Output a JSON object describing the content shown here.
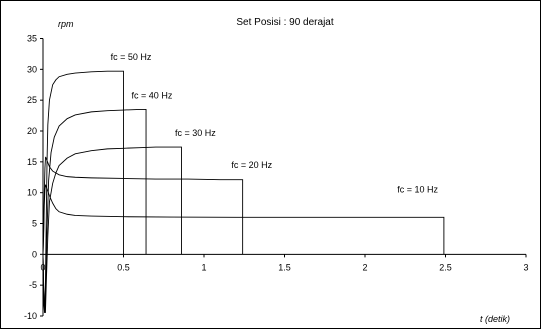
{
  "chart_data": {
    "type": "line",
    "title": "Set Posisi : 90 derajat",
    "xlabel": "t (detik)",
    "ylabel": "rpm",
    "xlim": [
      0,
      3
    ],
    "ylim": [
      -10,
      35
    ],
    "xticks": [
      0,
      0.5,
      1,
      1.5,
      2,
      2.5,
      3
    ],
    "xtick_labels": [
      "0",
      "0.5",
      "1",
      "1.5",
      "2",
      "2.5",
      "3"
    ],
    "yticks": [
      -10,
      -5,
      0,
      5,
      10,
      15,
      20,
      25,
      30,
      35
    ],
    "ytick_labels": [
      "-10",
      "-5",
      "0",
      "5",
      "10",
      "15",
      "20",
      "25",
      "30",
      "35"
    ],
    "grid": false,
    "legend": "none",
    "series": [
      {
        "label": "fc = 50 Hz",
        "label_at": [
          0.42,
          31.5
        ],
        "points": [
          [
            0,
            0
          ],
          [
            0.005,
            -8
          ],
          [
            0.01,
            -9.5
          ],
          [
            0.015,
            -5
          ],
          [
            0.02,
            5
          ],
          [
            0.025,
            15
          ],
          [
            0.03,
            21
          ],
          [
            0.04,
            25
          ],
          [
            0.06,
            27.5
          ],
          [
            0.08,
            28.3
          ],
          [
            0.1,
            28.8
          ],
          [
            0.15,
            29.2
          ],
          [
            0.2,
            29.4
          ],
          [
            0.3,
            29.6
          ],
          [
            0.4,
            29.7
          ],
          [
            0.5,
            29.7
          ],
          [
            0.5,
            0
          ]
        ]
      },
      {
        "label": "fc = 40 Hz",
        "label_at": [
          0.55,
          25.3
        ],
        "points": [
          [
            0,
            0
          ],
          [
            0.005,
            -7
          ],
          [
            0.012,
            -9.5
          ],
          [
            0.018,
            -4
          ],
          [
            0.025,
            4
          ],
          [
            0.035,
            12
          ],
          [
            0.05,
            16.5
          ],
          [
            0.07,
            19
          ],
          [
            0.1,
            20.8
          ],
          [
            0.15,
            22
          ],
          [
            0.2,
            22.6
          ],
          [
            0.3,
            23.1
          ],
          [
            0.4,
            23.3
          ],
          [
            0.5,
            23.4
          ],
          [
            0.6,
            23.5
          ],
          [
            0.64,
            23.5
          ],
          [
            0.64,
            0
          ]
        ]
      },
      {
        "label": "fc = 30 Hz",
        "label_at": [
          0.82,
          19.2
        ],
        "points": [
          [
            0,
            0
          ],
          [
            0.005,
            -6
          ],
          [
            0.015,
            -9.5
          ],
          [
            0.02,
            -5
          ],
          [
            0.03,
            3
          ],
          [
            0.04,
            8.5
          ],
          [
            0.06,
            11.5
          ],
          [
            0.08,
            13.2
          ],
          [
            0.1,
            14.4
          ],
          [
            0.15,
            15.6
          ],
          [
            0.2,
            16.3
          ],
          [
            0.3,
            16.8
          ],
          [
            0.4,
            17.1
          ],
          [
            0.5,
            17.2
          ],
          [
            0.6,
            17.3
          ],
          [
            0.7,
            17.4
          ],
          [
            0.8,
            17.4
          ],
          [
            0.86,
            17.4
          ],
          [
            0.86,
            0
          ]
        ]
      },
      {
        "label": "fc = 20 Hz",
        "label_at": [
          1.17,
          14.0
        ],
        "points": [
          [
            0,
            0
          ],
          [
            0.004,
            4
          ],
          [
            0.008,
            10
          ],
          [
            0.012,
            14
          ],
          [
            0.016,
            15.8
          ],
          [
            0.025,
            15.2
          ],
          [
            0.04,
            14.2
          ],
          [
            0.06,
            13.5
          ],
          [
            0.1,
            12.9
          ],
          [
            0.15,
            12.6
          ],
          [
            0.2,
            12.5
          ],
          [
            0.3,
            12.4
          ],
          [
            0.5,
            12.3
          ],
          [
            0.7,
            12.2
          ],
          [
            0.9,
            12.2
          ],
          [
            1.1,
            12.1
          ],
          [
            1.24,
            12.1
          ],
          [
            1.24,
            0
          ]
        ]
      },
      {
        "label": "fc = 10 Hz",
        "label_at": [
          2.2,
          10.0
        ],
        "points": [
          [
            0,
            0
          ],
          [
            0.004,
            3
          ],
          [
            0.008,
            8
          ],
          [
            0.012,
            10.5
          ],
          [
            0.016,
            11.3
          ],
          [
            0.025,
            10.6
          ],
          [
            0.04,
            9.5
          ],
          [
            0.06,
            8.3
          ],
          [
            0.08,
            7.4
          ],
          [
            0.1,
            6.9
          ],
          [
            0.15,
            6.5
          ],
          [
            0.2,
            6.3
          ],
          [
            0.3,
            6.2
          ],
          [
            0.5,
            6.1
          ],
          [
            0.8,
            6.05
          ],
          [
            1.2,
            6.0
          ],
          [
            1.6,
            6.0
          ],
          [
            2.0,
            6.0
          ],
          [
            2.3,
            6.0
          ],
          [
            2.49,
            6.0
          ],
          [
            2.49,
            0
          ]
        ]
      }
    ]
  }
}
